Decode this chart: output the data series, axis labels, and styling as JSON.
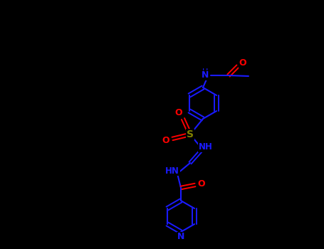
{
  "bg_color": "#000000",
  "bond_color": "#1a1aff",
  "O_color": "#ff0000",
  "N_color": "#1a1aff",
  "S_color": "#808000",
  "fig_width": 4.55,
  "fig_height": 3.5,
  "dpi": 100,
  "xlim": [
    0.0,
    4.55
  ],
  "ylim": [
    0.0,
    3.5
  ]
}
